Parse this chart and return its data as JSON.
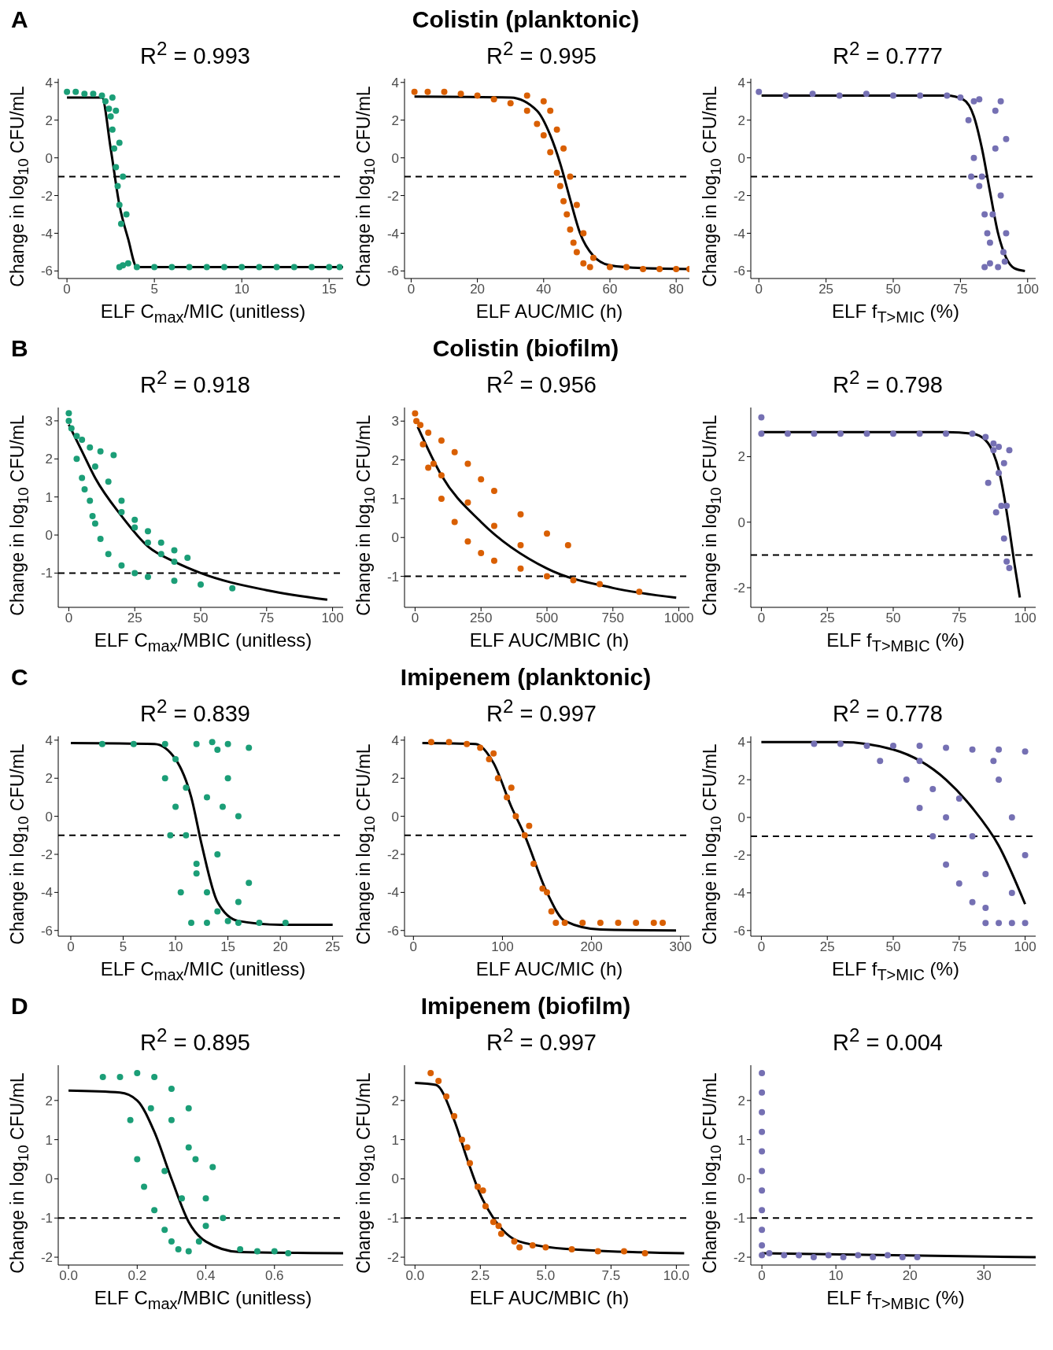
{
  "chart_data": [
    {
      "type": "scatter",
      "annotations": [
        "A"
      ],
      "title": "R$^{2}$ = 0.993",
      "xlabel": "ELF C$_{max}$/MIC (unitless)",
      "ylabel": "Change in log$_{10}$ CFU/mL",
      "xlim": [
        -0.5,
        15.8
      ],
      "xticks": [
        0,
        5,
        10,
        15
      ],
      "ylim": [
        -6.4,
        4.2
      ],
      "yticks": [
        -6,
        -4,
        -2,
        0,
        2,
        4
      ],
      "ref_lines": [
        {
          "axis": "y",
          "value": -1,
          "color": "#000000",
          "line_style": "dashed"
        }
      ],
      "series": [
        {
          "type": "scatter",
          "color": "#1b9e77",
          "marker": "circle",
          "x": [
            0,
            0.5,
            1,
            1.5,
            2,
            2.2,
            2.4,
            2.5,
            2.6,
            2.7,
            2.8,
            2.9,
            3,
            3.1,
            2.6,
            2.8,
            3,
            3.2,
            3.4,
            3,
            3.2,
            3.5,
            4,
            5,
            6,
            7,
            8,
            9,
            10,
            11,
            12,
            13,
            14,
            15,
            15.6
          ],
          "values": [
            3.5,
            3.5,
            3.4,
            3.4,
            3.3,
            3,
            2.6,
            2.2,
            1.5,
            0.5,
            -0.5,
            -1.5,
            -2.5,
            -3.5,
            3.2,
            2.5,
            0.8,
            -1,
            -3,
            -5.8,
            -5.7,
            -5.6,
            -5.8,
            -5.8,
            -5.8,
            -5.8,
            -5.8,
            -5.8,
            -5.8,
            -5.8,
            -5.8,
            -5.8,
            -5.8,
            -5.8,
            -5.8
          ]
        },
        {
          "type": "line",
          "color": "#000000",
          "marker": "none",
          "x": [
            0,
            2,
            2.5,
            3,
            3.5,
            4,
            15.8
          ],
          "values": [
            3.2,
            3.2,
            0.5,
            -2.5,
            -4.3,
            -5.8,
            -5.8
          ]
        }
      ]
    },
    {
      "type": "scatter",
      "annotations": [
        "Colistin (planktonic)"
      ],
      "title": "R$^{2}$ = 0.995",
      "xlabel": "ELF AUC/MIC (h)",
      "ylabel": "Change in log$_{10}$ CFU/mL",
      "xlim": [
        -2,
        84
      ],
      "xticks": [
        0,
        20,
        40,
        60,
        80
      ],
      "ylim": [
        -6.4,
        4.2
      ],
      "yticks": [
        -6,
        -4,
        -2,
        0,
        2,
        4
      ],
      "ref_lines": [
        {
          "axis": "y",
          "value": -1,
          "color": "#000000",
          "line_style": "dashed"
        }
      ],
      "series": [
        {
          "type": "scatter",
          "color": "#d95f02",
          "marker": "circle",
          "x": [
            1,
            5,
            10,
            15,
            20,
            25,
            30,
            35,
            38,
            40,
            42,
            44,
            45,
            46,
            47,
            48,
            49,
            50,
            52,
            54,
            35,
            40,
            42,
            44,
            46,
            48,
            50,
            52,
            55,
            60,
            65,
            70,
            75,
            80,
            84
          ],
          "values": [
            3.5,
            3.5,
            3.5,
            3.4,
            3.3,
            3.1,
            2.9,
            2.5,
            1.8,
            1.2,
            0.3,
            -0.8,
            -1.5,
            -2.3,
            -3,
            -3.8,
            -4.5,
            -5,
            -5.6,
            -5.8,
            3.3,
            3,
            2.5,
            1.5,
            0.5,
            -1,
            -2.5,
            -4,
            -5.3,
            -5.8,
            -5.8,
            -5.9,
            -5.9,
            -5.9,
            -5.9
          ]
        },
        {
          "type": "line",
          "color": "#000000",
          "marker": "none",
          "x": [
            1,
            30,
            38,
            42,
            45,
            48,
            51,
            55,
            60,
            70,
            84
          ],
          "values": [
            3.25,
            3.2,
            2.5,
            1.2,
            -0.3,
            -2.2,
            -4,
            -5.2,
            -5.7,
            -5.85,
            -5.9
          ]
        }
      ]
    },
    {
      "type": "scatter",
      "title": "R$^{2}$ = 0.777",
      "xlabel": "ELF f$_{T>MIC}$  (%)",
      "ylabel": "Change in log$_{10}$ CFU/mL",
      "xlim": [
        -3,
        103
      ],
      "xticks": [
        0,
        25,
        50,
        75,
        100
      ],
      "ylim": [
        -6.4,
        4.2
      ],
      "yticks": [
        -6,
        -4,
        -2,
        0,
        2,
        4
      ],
      "ref_lines": [
        {
          "axis": "y",
          "value": -1,
          "color": "#000000",
          "line_style": "dashed"
        }
      ],
      "series": [
        {
          "type": "scatter",
          "color": "#7570b3",
          "marker": "circle",
          "x": [
            0,
            10,
            20,
            30,
            40,
            50,
            60,
            70,
            75,
            78,
            80,
            82,
            84,
            86,
            91.5,
            90,
            92,
            80,
            82,
            84,
            86,
            88,
            90,
            85,
            88,
            91,
            83,
            87,
            89,
            92,
            79
          ],
          "values": [
            3.5,
            3.3,
            3.4,
            3.3,
            3.4,
            3.3,
            3.3,
            3.3,
            3.2,
            2,
            0,
            -1.5,
            -3,
            -4.5,
            -5.5,
            -2,
            1,
            3,
            3.1,
            -5.8,
            -5.6,
            2.5,
            3,
            -4,
            0.5,
            -5,
            -1,
            -3,
            -5.8,
            -4,
            -1
          ]
        },
        {
          "type": "line",
          "color": "#000000",
          "marker": "none",
          "x": [
            1,
            70,
            76,
            80,
            83,
            86,
            89,
            92,
            95,
            99
          ],
          "values": [
            3.3,
            3.3,
            3.1,
            2.2,
            0.5,
            -1.8,
            -4,
            -5.3,
            -5.85,
            -6
          ]
        }
      ]
    },
    {
      "type": "scatter",
      "annotations": [
        "B"
      ],
      "title": "R$^{2}$ = 0.918",
      "xlabel": "ELF C$_{max}$/MBIC (unitless)",
      "ylabel": "Change in log$_{10}$ CFU/mL",
      "xlim": [
        -4,
        104
      ],
      "xticks": [
        0,
        25,
        50,
        75,
        100
      ],
      "ylim": [
        -1.9,
        3.35
      ],
      "yticks": [
        -1,
        0,
        1,
        2,
        3
      ],
      "ref_lines": [
        {
          "axis": "y",
          "value": -1,
          "color": "#000000",
          "line_style": "dashed"
        }
      ],
      "series": [
        {
          "type": "scatter",
          "color": "#1b9e77",
          "marker": "circle",
          "x": [
            0,
            0,
            1,
            3,
            5,
            8,
            12,
            17,
            10,
            15,
            20,
            25,
            30,
            35,
            40,
            45,
            20,
            25,
            30,
            35,
            40,
            5,
            8,
            10,
            12,
            15,
            20,
            25,
            30,
            40,
            50,
            62,
            3,
            6,
            9
          ],
          "values": [
            3.2,
            3,
            2.8,
            2.6,
            2.5,
            2.3,
            2.2,
            2.1,
            1.8,
            1.4,
            0.9,
            0.4,
            0.1,
            -0.2,
            -0.4,
            -0.6,
            0.6,
            0.2,
            -0.2,
            -0.5,
            -0.7,
            1.5,
            0.9,
            0.3,
            -0.1,
            -0.5,
            -0.8,
            -1,
            -1.1,
            -1.2,
            -1.3,
            -1.4,
            2,
            1.2,
            0.5
          ]
        },
        {
          "type": "line",
          "color": "#000000",
          "marker": "none",
          "x": [
            0,
            5,
            10,
            20,
            30,
            40,
            50,
            75,
            98
          ],
          "values": [
            2.9,
            2.2,
            1.5,
            0.5,
            -0.3,
            -0.7,
            -1,
            -1.45,
            -1.7
          ]
        }
      ]
    },
    {
      "type": "scatter",
      "annotations": [
        "Colistin (biofilm)"
      ],
      "title": "R$^{2}$ = 0.956",
      "xlabel": "ELF AUC/MBIC (h)",
      "ylabel": "Change in log$_{10}$ CFU/mL",
      "xlim": [
        -40,
        1040
      ],
      "xticks": [
        0,
        250,
        500,
        750,
        1000
      ],
      "ylim": [
        -1.8,
        3.35
      ],
      "yticks": [
        -1,
        0,
        1,
        2,
        3
      ],
      "ref_lines": [
        {
          "axis": "y",
          "value": -1,
          "color": "#000000",
          "line_style": "dashed"
        }
      ],
      "series": [
        {
          "type": "scatter",
          "color": "#d95f02",
          "marker": "circle",
          "x": [
            0,
            5,
            20,
            50,
            100,
            150,
            200,
            250,
            300,
            400,
            500,
            580,
            100,
            200,
            300,
            400,
            50,
            100,
            150,
            200,
            250,
            300,
            400,
            500,
            600,
            700,
            850,
            30,
            70
          ],
          "values": [
            3.2,
            3,
            2.9,
            2.7,
            2.5,
            2.2,
            1.9,
            1.5,
            1.2,
            0.6,
            0.1,
            -0.2,
            1.6,
            0.9,
            0.3,
            -0.2,
            1.8,
            1,
            0.4,
            -0.1,
            -0.4,
            -0.6,
            -0.8,
            -1,
            -1.1,
            -1.2,
            -1.4,
            2.4,
            1.9
          ]
        },
        {
          "type": "line",
          "color": "#000000",
          "marker": "none",
          "x": [
            10,
            100,
            250,
            500,
            750,
            990
          ],
          "values": [
            2.85,
            1.6,
            0.4,
            -0.8,
            -1.3,
            -1.55
          ]
        }
      ]
    },
    {
      "type": "scatter",
      "title": "R$^{2}$ = 0.798",
      "xlabel": "ELF f$_{T>MBIC}$  (%)",
      "ylabel": "Change in log$_{10}$ CFU/mL",
      "xlim": [
        -4,
        104
      ],
      "xticks": [
        0,
        25,
        50,
        75,
        100
      ],
      "ylim": [
        -2.6,
        3.5
      ],
      "yticks": [
        -2,
        0,
        2
      ],
      "ref_lines": [
        {
          "axis": "y",
          "value": -1,
          "color": "#000000",
          "line_style": "dashed"
        }
      ],
      "series": [
        {
          "type": "scatter",
          "color": "#7570b3",
          "marker": "circle",
          "x": [
            0,
            0,
            10,
            20,
            30,
            40,
            50,
            60,
            70,
            80,
            85,
            88,
            90,
            91,
            92,
            93,
            94,
            88,
            90,
            92,
            94,
            86,
            89,
            93
          ],
          "values": [
            3.2,
            2.7,
            2.7,
            2.7,
            2.7,
            2.7,
            2.7,
            2.7,
            2.7,
            2.7,
            2.6,
            2.2,
            1.5,
            0.5,
            -0.5,
            -1.2,
            -1.4,
            2.4,
            2.3,
            1.8,
            2.2,
            1.2,
            0.3,
            0.5
          ]
        },
        {
          "type": "line",
          "color": "#000000",
          "marker": "none",
          "x": [
            0,
            70,
            80,
            85,
            88,
            90,
            92,
            94,
            96,
            98
          ],
          "values": [
            2.75,
            2.75,
            2.7,
            2.5,
            2.1,
            1.6,
            0.8,
            -0.2,
            -1.3,
            -2.3
          ]
        }
      ]
    },
    {
      "type": "scatter",
      "annotations": [
        "C"
      ],
      "title": "R$^{2}$ = 0.839",
      "xlabel": "ELF C$_{max}$/MIC (unitless)",
      "ylabel": "Change in log$_{10}$ CFU/mL",
      "xlim": [
        -1.2,
        26
      ],
      "xticks": [
        0,
        5,
        10,
        15,
        20,
        25
      ],
      "ylim": [
        -6.3,
        4.2
      ],
      "yticks": [
        -6,
        -4,
        -2,
        0,
        2,
        4
      ],
      "ref_lines": [
        {
          "axis": "y",
          "value": -1,
          "color": "#000000",
          "line_style": "dashed"
        }
      ],
      "series": [
        {
          "type": "scatter",
          "color": "#1b9e77",
          "marker": "circle",
          "x": [
            3,
            6,
            9,
            13.5,
            15,
            17,
            9,
            10,
            11,
            12,
            13,
            14,
            15,
            16,
            10,
            11,
            12,
            13,
            9.5,
            10.5,
            11.5,
            14,
            15,
            16,
            17,
            12,
            14,
            16,
            18,
            20.5,
            13,
            14.5
          ],
          "values": [
            3.8,
            3.8,
            3.8,
            3.9,
            3.8,
            3.6,
            2,
            0.5,
            -1,
            -2.5,
            -4,
            -5,
            -5.5,
            -4.5,
            3,
            1.5,
            -3,
            -5.6,
            -1,
            -4,
            -5.6,
            3.5,
            2,
            0,
            -3.5,
            3.8,
            -2,
            -5.6,
            -5.6,
            -5.6,
            1,
            0.5
          ]
        },
        {
          "type": "line",
          "color": "#000000",
          "marker": "none",
          "x": [
            0,
            8,
            10,
            11.5,
            12.5,
            14,
            16,
            20,
            25
          ],
          "values": [
            3.85,
            3.8,
            3,
            1,
            -1.5,
            -4.5,
            -5.5,
            -5.7,
            -5.7
          ]
        }
      ]
    },
    {
      "type": "scatter",
      "annotations": [
        "Imipenem (planktonic)"
      ],
      "title": "R$^{2}$ = 0.997",
      "xlabel": "ELF AUC/MIC (h)",
      "ylabel": "Change in log$_{10}$ CFU/mL",
      "xlim": [
        -10,
        310
      ],
      "xticks": [
        0,
        100,
        200,
        300
      ],
      "ylim": [
        -6.3,
        4.2
      ],
      "yticks": [
        -6,
        -4,
        -2,
        0,
        2,
        4
      ],
      "ref_lines": [
        {
          "axis": "y",
          "value": -1,
          "color": "#000000",
          "line_style": "dashed"
        }
      ],
      "series": [
        {
          "type": "scatter",
          "color": "#d95f02",
          "marker": "circle",
          "x": [
            20,
            40,
            60,
            75,
            85,
            95,
            105,
            115,
            125,
            135,
            145,
            155,
            160,
            170,
            190,
            210,
            230,
            250,
            270,
            280,
            90,
            110,
            130,
            150
          ],
          "values": [
            3.9,
            3.9,
            3.8,
            3.6,
            3,
            2,
            1,
            0,
            -1,
            -2.5,
            -3.8,
            -5,
            -5.6,
            -5.6,
            -5.6,
            -5.6,
            -5.6,
            -5.6,
            -5.6,
            -5.6,
            3.3,
            1.5,
            -0.5,
            -4
          ]
        },
        {
          "type": "line",
          "color": "#000000",
          "marker": "none",
          "x": [
            10,
            70,
            90,
            110,
            125,
            150,
            170,
            210,
            295
          ],
          "values": [
            3.85,
            3.8,
            2.8,
            0.5,
            -1,
            -4,
            -5.5,
            -5.95,
            -6
          ]
        }
      ]
    },
    {
      "type": "scatter",
      "title": "R$^{2}$ = 0.778",
      "xlabel": "ELF f$_{T>MIC}$  (%)",
      "ylabel": "Change in log$_{10}$ CFU/mL",
      "xlim": [
        -4,
        104
      ],
      "xticks": [
        0,
        25,
        50,
        75,
        100
      ],
      "ylim": [
        -6.3,
        4.3
      ],
      "yticks": [
        -6,
        -4,
        -2,
        0,
        2,
        4
      ],
      "ref_lines": [
        {
          "axis": "y",
          "value": -1,
          "color": "#000000",
          "line_style": "dashed"
        }
      ],
      "series": [
        {
          "type": "scatter",
          "color": "#7570b3",
          "marker": "circle",
          "x": [
            20,
            30,
            40,
            50,
            60,
            70,
            80,
            90,
            100,
            45,
            55,
            60,
            65,
            70,
            75,
            80,
            85,
            90,
            95,
            100,
            75,
            80,
            85,
            90,
            95,
            100,
            65,
            70,
            85,
            95,
            60,
            88
          ],
          "values": [
            3.9,
            3.9,
            3.8,
            3.8,
            3.8,
            3.7,
            3.6,
            3.6,
            3.5,
            3,
            2,
            0.5,
            -1,
            -2.5,
            -3.5,
            -4.5,
            -4.8,
            -5.6,
            -5.6,
            -5.6,
            1,
            -1,
            -3,
            2,
            0,
            -2,
            1.5,
            0,
            -5.6,
            -4,
            3,
            3
          ]
        },
        {
          "type": "line",
          "color": "#000000",
          "marker": "none",
          "x": [
            0,
            30,
            50,
            70,
            80,
            90,
            100
          ],
          "values": [
            4,
            4,
            3.6,
            2,
            0.5,
            -1.5,
            -4.6
          ]
        }
      ]
    },
    {
      "type": "scatter",
      "annotations": [
        "D"
      ],
      "title": "R$^{2}$ = 0.895",
      "xlabel": "ELF C$_{max}$/MBIC (unitless)",
      "ylabel": "Change in log$_{10}$ CFU/mL",
      "xlim": [
        -0.03,
        0.8
      ],
      "xticks": [
        {
          "value": 0,
          "label": "0.0"
        },
        {
          "value": 0.2,
          "label": "0.2"
        },
        {
          "value": 0.4,
          "label": "0.4"
        },
        {
          "value": 0.6,
          "label": "0.6"
        }
      ],
      "ylim": [
        -2.2,
        2.9
      ],
      "yticks": [
        -2,
        -1,
        0,
        1,
        2
      ],
      "ref_lines": [
        {
          "axis": "y",
          "value": -1,
          "color": "#000000",
          "line_style": "dashed"
        }
      ],
      "series": [
        {
          "type": "scatter",
          "color": "#1b9e77",
          "marker": "circle",
          "x": [
            0.1,
            0.15,
            0.2,
            0.25,
            0.3,
            0.35,
            0.18,
            0.2,
            0.22,
            0.25,
            0.28,
            0.3,
            0.32,
            0.35,
            0.38,
            0.4,
            0.42,
            0.45,
            0.3,
            0.35,
            0.4,
            0.5,
            0.55,
            0.6,
            0.64,
            0.24,
            0.28,
            0.33,
            0.37
          ],
          "values": [
            2.6,
            2.6,
            2.7,
            2.6,
            2.3,
            1.8,
            1.5,
            0.5,
            -0.2,
            -0.8,
            -1.3,
            -1.6,
            -1.8,
            -1.85,
            -1.6,
            -0.5,
            0.3,
            -1,
            1.5,
            0.8,
            -1.2,
            -1.8,
            -1.85,
            -1.85,
            -1.9,
            1.8,
            0.2,
            -0.5,
            0.5
          ]
        },
        {
          "type": "line",
          "color": "#000000",
          "marker": "none",
          "x": [
            0,
            0.15,
            0.2,
            0.25,
            0.3,
            0.35,
            0.4,
            0.5,
            0.8
          ],
          "values": [
            2.25,
            2.2,
            2,
            1.2,
            0,
            -1.1,
            -1.6,
            -1.87,
            -1.9
          ]
        }
      ]
    },
    {
      "type": "scatter",
      "annotations": [
        "Imipenem (biofilm)"
      ],
      "title": "R$^{2}$ = 0.997",
      "xlabel": "ELF AUC/MBIC (h)",
      "ylabel": "Change in log$_{10}$ CFU/mL",
      "xlim": [
        -0.4,
        10.5
      ],
      "xticks": [
        {
          "value": 0,
          "label": "0.0"
        },
        {
          "value": 2.5,
          "label": "2.5"
        },
        {
          "value": 5,
          "label": "5.0"
        },
        {
          "value": 7.5,
          "label": "7.5"
        },
        {
          "value": 10,
          "label": "10.0"
        }
      ],
      "ylim": [
        -2.2,
        2.9
      ],
      "yticks": [
        -2,
        -1,
        0,
        1,
        2
      ],
      "ref_lines": [
        {
          "axis": "y",
          "value": -1,
          "color": "#000000",
          "line_style": "dashed"
        }
      ],
      "series": [
        {
          "type": "scatter",
          "color": "#d95f02",
          "marker": "circle",
          "x": [
            0.6,
            0.9,
            1.2,
            1.5,
            1.8,
            2.1,
            2.4,
            2.7,
            3,
            3.3,
            3.8,
            4.5,
            5,
            6,
            7,
            8,
            8.8,
            2,
            2.6,
            3.2,
            4
          ],
          "values": [
            2.7,
            2.5,
            2.1,
            1.6,
            1,
            0.4,
            -0.2,
            -0.7,
            -1.1,
            -1.4,
            -1.6,
            -1.7,
            -1.75,
            -1.8,
            -1.85,
            -1.85,
            -1.9,
            0.8,
            -0.3,
            -1.2,
            -1.75
          ]
        },
        {
          "type": "line",
          "color": "#000000",
          "marker": "none",
          "x": [
            0,
            0.8,
            1.5,
            2,
            2.5,
            3,
            4,
            6,
            10.3
          ],
          "values": [
            2.45,
            2.4,
            1.5,
            0.5,
            -0.4,
            -1,
            -1.6,
            -1.8,
            -1.9
          ]
        }
      ]
    },
    {
      "type": "scatter",
      "title": "R$^{2}$ = 0.004",
      "xlabel": "ELF f$_{T>MBIC}$  (%)",
      "ylabel": "Change in log$_{10}$ CFU/mL",
      "xlim": [
        -1.5,
        37
      ],
      "xticks": [
        0,
        10,
        20,
        30
      ],
      "ylim": [
        -2.2,
        2.9
      ],
      "yticks": [
        -2,
        -1,
        0,
        1,
        2
      ],
      "ref_lines": [
        {
          "axis": "y",
          "value": -1,
          "color": "#000000",
          "line_style": "dashed"
        }
      ],
      "series": [
        {
          "type": "scatter",
          "color": "#7570b3",
          "marker": "circle",
          "x": [
            0,
            0,
            0,
            0,
            0,
            0,
            0,
            0,
            0,
            0,
            0,
            1,
            3,
            5,
            7,
            9,
            11,
            13,
            15,
            17,
            19,
            21
          ],
          "values": [
            2.7,
            2.2,
            1.7,
            1.2,
            0.7,
            0.2,
            -0.3,
            -0.8,
            -1.3,
            -1.7,
            -1.95,
            -1.9,
            -1.95,
            -1.95,
            -2,
            -1.95,
            -2,
            -1.95,
            -2,
            -1.95,
            -2,
            -2
          ]
        },
        {
          "type": "line",
          "color": "#000000",
          "marker": "none",
          "x": [
            0,
            37
          ],
          "values": [
            -1.9,
            -2
          ]
        }
      ]
    }
  ]
}
